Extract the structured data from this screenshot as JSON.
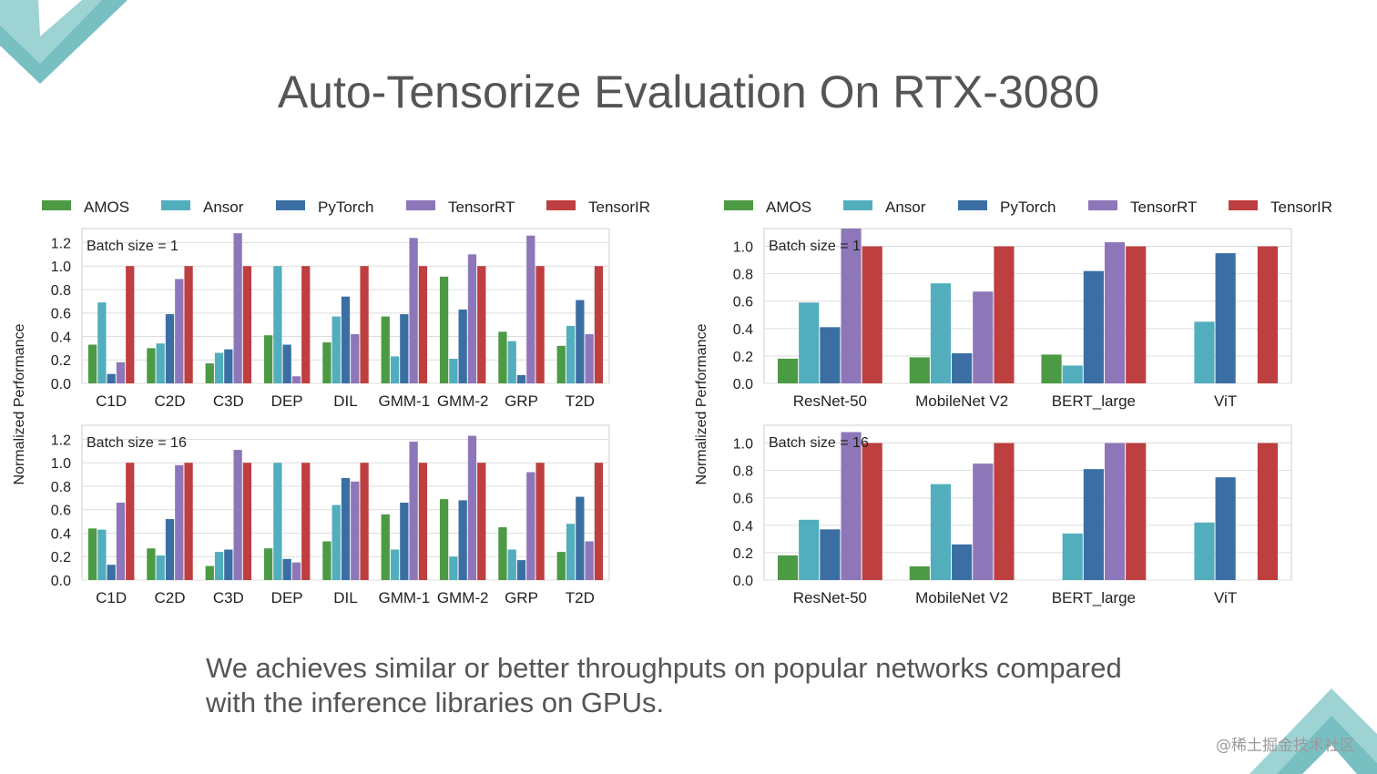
{
  "slide": {
    "title": "Auto-Tensorize Evaluation On RTX-3080",
    "caption_lines": [
      "We achieves similar or better throughputs on popular networks compared",
      "with the inference libraries on GPUs."
    ],
    "watermark": "@稀土掘金技术社区"
  },
  "colors": {
    "AMOS": "#4c9a44",
    "Ansor": "#52aebd",
    "PyTorch": "#3b6fa3",
    "TensorRT": "#8d77b8",
    "TensorIR": "#bd3f40",
    "decor": "#7fc1c4"
  },
  "chart_data": [
    {
      "type": "bar",
      "panel": "operators-batch-1",
      "annotation": "Batch size = 1",
      "ylabel": "Normalized Performance",
      "ylim": [
        0,
        1.32
      ],
      "yticks": [
        "0.0",
        "0.2",
        "0.4",
        "0.6",
        "0.8",
        "1.0",
        "1.2"
      ],
      "legend": "top",
      "grid": true,
      "categories": [
        "C1D",
        "C2D",
        "C3D",
        "DEP",
        "DIL",
        "GMM-1",
        "GMM-2",
        "GRP",
        "T2D"
      ],
      "series": [
        {
          "name": "AMOS",
          "values": [
            0.33,
            0.3,
            0.17,
            0.41,
            0.35,
            0.57,
            0.91,
            0.44,
            0.32
          ]
        },
        {
          "name": "Ansor",
          "values": [
            0.69,
            0.34,
            0.26,
            1.0,
            0.57,
            0.23,
            0.21,
            0.36,
            0.49
          ]
        },
        {
          "name": "PyTorch",
          "values": [
            0.08,
            0.59,
            0.29,
            0.33,
            0.74,
            0.59,
            0.63,
            0.07,
            0.71
          ]
        },
        {
          "name": "TensorRT",
          "values": [
            0.18,
            0.89,
            1.28,
            0.06,
            0.42,
            1.24,
            1.1,
            1.26,
            0.42
          ]
        },
        {
          "name": "TensorIR",
          "values": [
            1.0,
            1.0,
            1.0,
            1.0,
            1.0,
            1.0,
            1.0,
            1.0,
            1.0
          ]
        }
      ]
    },
    {
      "type": "bar",
      "panel": "operators-batch-16",
      "annotation": "Batch size = 16",
      "ylabel": "Normalized Performance",
      "ylim": [
        0,
        1.32
      ],
      "yticks": [
        "0.0",
        "0.2",
        "0.4",
        "0.6",
        "0.8",
        "1.0",
        "1.2"
      ],
      "grid": true,
      "categories": [
        "C1D",
        "C2D",
        "C3D",
        "DEP",
        "DIL",
        "GMM-1",
        "GMM-2",
        "GRP",
        "T2D"
      ],
      "series": [
        {
          "name": "AMOS",
          "values": [
            0.44,
            0.27,
            0.12,
            0.27,
            0.33,
            0.56,
            0.69,
            0.45,
            0.24
          ]
        },
        {
          "name": "Ansor",
          "values": [
            0.43,
            0.21,
            0.24,
            1.0,
            0.64,
            0.26,
            0.2,
            0.26,
            0.48
          ]
        },
        {
          "name": "PyTorch",
          "values": [
            0.13,
            0.52,
            0.26,
            0.18,
            0.87,
            0.66,
            0.68,
            0.17,
            0.71
          ]
        },
        {
          "name": "TensorRT",
          "values": [
            0.66,
            0.98,
            1.11,
            0.15,
            0.84,
            1.18,
            1.23,
            0.92,
            0.33
          ]
        },
        {
          "name": "TensorIR",
          "values": [
            1.0,
            1.0,
            1.0,
            1.0,
            1.0,
            1.0,
            1.0,
            1.0,
            1.0
          ]
        }
      ]
    },
    {
      "type": "bar",
      "panel": "networks-batch-1",
      "annotation": "Batch size = 1",
      "ylabel": "Normalized Performance",
      "ylim": [
        0,
        1.13
      ],
      "yticks": [
        "0.0",
        "0.2",
        "0.4",
        "0.6",
        "0.8",
        "1.0"
      ],
      "legend": "top",
      "grid": true,
      "categories": [
        "ResNet-50",
        "MobileNet V2",
        "BERT_large",
        "ViT"
      ],
      "series": [
        {
          "name": "AMOS",
          "values": [
            0.18,
            0.19,
            0.21,
            0
          ]
        },
        {
          "name": "Ansor",
          "values": [
            0.59,
            0.73,
            0.13,
            0.45
          ]
        },
        {
          "name": "PyTorch",
          "values": [
            0.41,
            0.22,
            0.82,
            0.95
          ]
        },
        {
          "name": "TensorRT",
          "values": [
            1.13,
            0.67,
            1.03,
            0
          ]
        },
        {
          "name": "TensorIR",
          "values": [
            1.0,
            1.0,
            1.0,
            1.0
          ]
        }
      ]
    },
    {
      "type": "bar",
      "panel": "networks-batch-16",
      "annotation": "Batch size = 16",
      "ylabel": "Normalized Performance",
      "ylim": [
        0,
        1.13
      ],
      "yticks": [
        "0.0",
        "0.2",
        "0.4",
        "0.6",
        "0.8",
        "1.0"
      ],
      "grid": true,
      "categories": [
        "ResNet-50",
        "MobileNet V2",
        "BERT_large",
        "ViT"
      ],
      "series": [
        {
          "name": "AMOS",
          "values": [
            0.18,
            0.1,
            0,
            0
          ]
        },
        {
          "name": "Ansor",
          "values": [
            0.44,
            0.7,
            0.34,
            0.42
          ]
        },
        {
          "name": "PyTorch",
          "values": [
            0.37,
            0.26,
            0.81,
            0.75
          ]
        },
        {
          "name": "TensorRT",
          "values": [
            1.08,
            0.85,
            1.0,
            0
          ]
        },
        {
          "name": "TensorIR",
          "values": [
            1.0,
            1.0,
            1.0,
            1.0
          ]
        }
      ]
    }
  ]
}
